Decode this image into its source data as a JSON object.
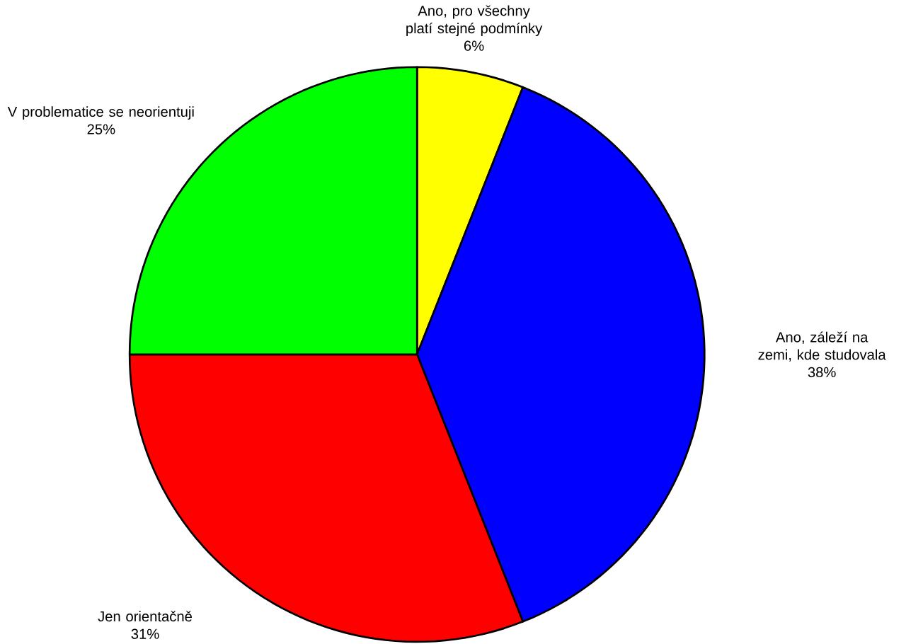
{
  "chart_data": {
    "type": "pie",
    "categories": [
      "Ano, pro všechny platí stejné podmínky",
      "Ano, záleží na zemi, kde studovala",
      "Jen orientačně",
      "V problematice se neorientuji"
    ],
    "values": [
      6,
      38,
      31,
      25
    ],
    "colors": [
      "#ffff00",
      "#0000ff",
      "#ff0000",
      "#00ff00"
    ],
    "value_labels": [
      "6%",
      "38%",
      "31%",
      "25%"
    ]
  }
}
